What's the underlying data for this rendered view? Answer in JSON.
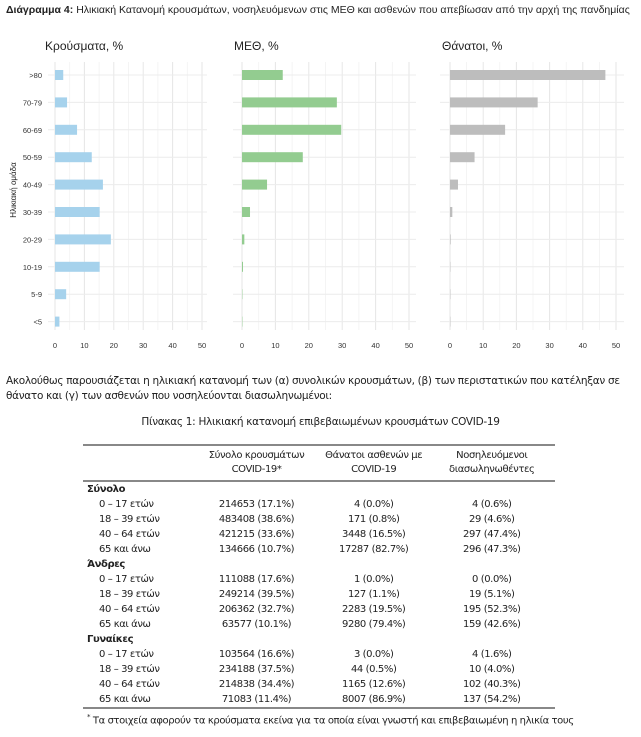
{
  "figure": {
    "label": "Διάγραμμα 4:",
    "title": "Ηλικιακή Κατανομή κρουσμάτων, νοσηλευόμενων στις ΜΕΘ και ασθενών που απεβίωσαν από την αρχή της πανδημίας"
  },
  "chart_data": [
    {
      "type": "bar",
      "orientation": "horizontal",
      "title": "Κρούσματα, %",
      "ylabel": "Ηλικιακή ομάδα",
      "xlabel": "",
      "xlim": [
        0,
        50
      ],
      "xticks": [
        "0",
        "10",
        "20",
        "30",
        "40",
        "50"
      ],
      "color": "#a6d2ec",
      "categories": [
        ">80",
        "70-79",
        "60-69",
        "50-59",
        "40-49",
        "30-39",
        "20-29",
        "10-19",
        "5-9",
        "<5"
      ],
      "values": [
        2.8,
        4.1,
        7.5,
        12.5,
        16.3,
        15.2,
        19.0,
        15.2,
        3.8,
        1.5
      ]
    },
    {
      "type": "bar",
      "orientation": "horizontal",
      "title": "ΜΕΘ, %",
      "xlabel": "",
      "xlim": [
        0,
        50
      ],
      "xticks": [
        "0",
        "10",
        "20",
        "30",
        "40",
        "50"
      ],
      "color": "#93cc90",
      "categories": [
        ">80",
        "70-79",
        "60-69",
        "50-59",
        "40-49",
        "30-39",
        "20-29",
        "10-19",
        "5-9",
        "<5"
      ],
      "values": [
        12.2,
        28.4,
        29.7,
        18.2,
        7.5,
        2.4,
        0.7,
        0.3,
        0.05,
        0.05
      ]
    },
    {
      "type": "bar",
      "orientation": "horizontal",
      "title": "Θάνατοι, %",
      "xlabel": "",
      "xlim": [
        0,
        50
      ],
      "xticks": [
        "0",
        "10",
        "20",
        "30",
        "40",
        "50"
      ],
      "color": "#bdbdbd",
      "categories": [
        ">80",
        "70-79",
        "60-69",
        "50-59",
        "40-49",
        "30-39",
        "20-29",
        "10-19",
        "5-9",
        "<5"
      ],
      "values": [
        46.8,
        26.4,
        16.6,
        7.4,
        2.4,
        0.7,
        0.2,
        0,
        0,
        0
      ]
    }
  ],
  "paragraph": "Ακολούθως παρουσιάζεται η ηλικιακή κατανομή των (α) συνολικών κρουσμάτων, (β) των περιστατικών που κατέληξαν σε θάνατο και (γ) των ασθενών που νοσηλεύονται διασωληνωμένοι:",
  "table": {
    "title": "Πίνακας 1: Ηλικιακή κατανομή επιβεβαιωμένων κρουσμάτων COVID-19",
    "headers": [
      "",
      "Σύνολο κρουσμάτων COVID-19*",
      "Θάνατοι ασθενών με COVID-19",
      "Νοσηλευόμενοι διασωληνωθέντες"
    ],
    "groups": [
      {
        "name": "Σύνολο",
        "rows": [
          [
            "0 – 17 ετών",
            "214653 (17.1%)",
            "4 (0.0%)",
            "4 (0.6%)"
          ],
          [
            "18 – 39 ετών",
            "483408 (38.6%)",
            "171 (0.8%)",
            "29 (4.6%)"
          ],
          [
            "40 – 64 ετών",
            "421215 (33.6%)",
            "3448 (16.5%)",
            "297 (47.4%)"
          ],
          [
            "65 και άνω",
            "134666 (10.7%)",
            "17287 (82.7%)",
            "296 (47.3%)"
          ]
        ]
      },
      {
        "name": "Άνδρες",
        "rows": [
          [
            "0 – 17 ετών",
            "111088 (17.6%)",
            "1 (0.0%)",
            "0 (0.0%)"
          ],
          [
            "18 – 39 ετών",
            "249214 (39.5%)",
            "127 (1.1%)",
            "19 (5.1%)"
          ],
          [
            "40 – 64 ετών",
            "206362 (32.7%)",
            "2283 (19.5%)",
            "195 (52.3%)"
          ],
          [
            "65 και άνω",
            "63577 (10.1%)",
            "9280 (79.4%)",
            "159 (42.6%)"
          ]
        ]
      },
      {
        "name": "Γυναίκες",
        "rows": [
          [
            "0 – 17 ετών",
            "103564 (16.6%)",
            "3 (0.0%)",
            "4 (1.6%)"
          ],
          [
            "18 – 39 ετών",
            "234188 (37.5%)",
            "44 (0.5%)",
            "10 (4.0%)"
          ],
          [
            "40 – 64 ετών",
            "214838 (34.4%)",
            "1165 (12.6%)",
            "102 (40.3%)"
          ],
          [
            "65 και άνω",
            "71083 (11.4%)",
            "8007 (86.9%)",
            "137 (54.2%)"
          ]
        ]
      }
    ],
    "footnote_mark": "*",
    "footnote": "Τα στοιχεία αφορούν τα κρούσματα εκείνα για τα οποία είναι γνωστή και επιβεβαιωμένη η ηλικία τους"
  }
}
